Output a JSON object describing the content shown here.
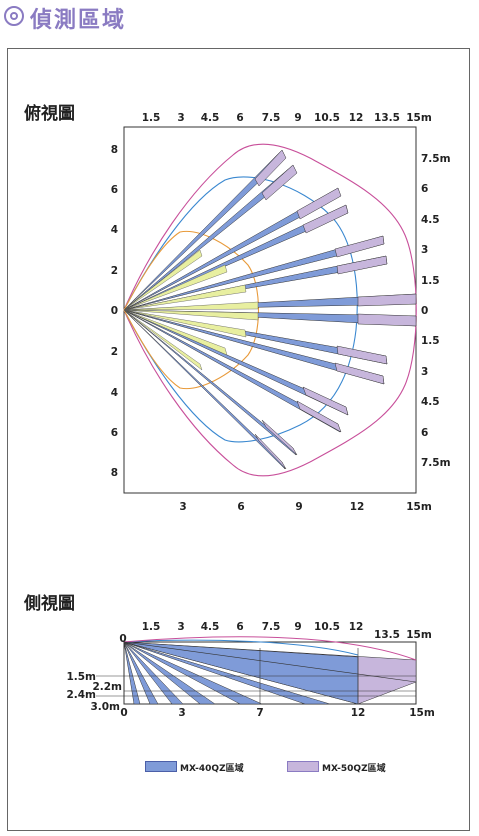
{
  "header": {
    "title": "偵測區域"
  },
  "top_view": {
    "title": "俯視圖",
    "top_axis": [
      "1.5",
      "3",
      "4.5",
      "6",
      "7.5",
      "9",
      "10.5",
      "12",
      "13.5",
      "15m"
    ],
    "bottom_axis": [
      "3",
      "6",
      "9",
      "12",
      "15m"
    ],
    "left_axis": [
      "8",
      "6",
      "4",
      "2",
      "0",
      "2",
      "4",
      "6",
      "8"
    ],
    "right_axis": [
      "7.5m",
      "6",
      "4.5",
      "3",
      "1.5",
      "0",
      "1.5",
      "3",
      "4.5",
      "6",
      "7.5m"
    ]
  },
  "side_view": {
    "title": "側視圖",
    "top_axis": [
      "0",
      "1.5",
      "3",
      "4.5",
      "6",
      "7.5",
      "9",
      "10.5",
      "12",
      "13.5",
      "15m"
    ],
    "left_axis": [
      "1.5m",
      "2.2m",
      "2.4m",
      "3.0m"
    ],
    "bottom_axis": [
      "0",
      "3",
      "7",
      "12",
      "15m"
    ]
  },
  "legend": {
    "mx40": "MX-40QZ區域",
    "mx50": "MX-50QZ區域"
  },
  "colors": {
    "accent": "#8a7bc2",
    "blue_zone": "#7f9bd8",
    "purple_zone": "#c7b6dc",
    "yellow_zone": "#e8efa0"
  }
}
